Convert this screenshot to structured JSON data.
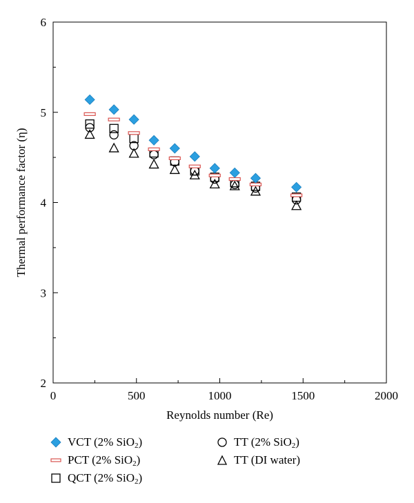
{
  "chart_data": {
    "type": "scatter",
    "xlabel": "Reynolds number (Re)",
    "ylabel": "Thermal performance factor (η)",
    "xlim": [
      0,
      2000
    ],
    "ylim": [
      2,
      6
    ],
    "xticks": [
      0,
      500,
      1000,
      1500,
      2000
    ],
    "yticks": [
      2,
      3,
      4,
      5,
      6
    ],
    "grid": false,
    "legend_position": "bottom",
    "series": [
      {
        "name": "VCT (2% SiO2)",
        "marker": "diamond",
        "color": "#2b9fe0",
        "x": [
          220,
          365,
          485,
          605,
          730,
          850,
          970,
          1090,
          1215,
          1460
        ],
        "y": [
          5.14,
          5.03,
          4.92,
          4.69,
          4.6,
          4.51,
          4.38,
          4.33,
          4.27,
          4.17
        ]
      },
      {
        "name": "PCT (2% SiO2)",
        "marker": "dash",
        "color": "#d9534f",
        "x": [
          220,
          365,
          485,
          605,
          730,
          850,
          970,
          1090,
          1215,
          1460
        ],
        "y": [
          4.98,
          4.92,
          4.77,
          4.59,
          4.49,
          4.4,
          4.3,
          4.26,
          4.2,
          4.08
        ]
      },
      {
        "name": "QCT (2% SiO2)",
        "marker": "square",
        "color": "#000000",
        "x": [
          220,
          365,
          485,
          605,
          730,
          850,
          970,
          1090,
          1215,
          1460
        ],
        "y": [
          4.87,
          4.82,
          4.71,
          4.55,
          4.46,
          4.35,
          4.28,
          4.22,
          4.18,
          4.06
        ]
      },
      {
        "name": "TT (2% SiO2)",
        "marker": "circle",
        "color": "#000000",
        "x": [
          220,
          365,
          485,
          605,
          730,
          850,
          970,
          1090,
          1215,
          1460
        ],
        "y": [
          4.83,
          4.75,
          4.63,
          4.53,
          4.45,
          4.35,
          4.26,
          4.2,
          4.16,
          4.03
        ]
      },
      {
        "name": "TT (DI water)",
        "marker": "triangle",
        "color": "#000000",
        "x": [
          220,
          365,
          485,
          605,
          730,
          850,
          970,
          1090,
          1215,
          1460
        ],
        "y": [
          4.75,
          4.6,
          4.54,
          4.42,
          4.36,
          4.3,
          4.2,
          4.18,
          4.12,
          3.96
        ]
      }
    ]
  },
  "legend": {
    "vct": {
      "main": "VCT (2% SiO",
      "sub": "2",
      "tail": ")"
    },
    "pct": {
      "main": "PCT (2% SiO",
      "sub": "2",
      "tail": ")"
    },
    "qct": {
      "main": "QCT (2% SiO",
      "sub": "2",
      "tail": ")"
    },
    "tt_sio2": {
      "main": "TT (2% SiO",
      "sub": "2",
      "tail": ")"
    },
    "tt_water": {
      "main": "TT (DI water)"
    }
  }
}
